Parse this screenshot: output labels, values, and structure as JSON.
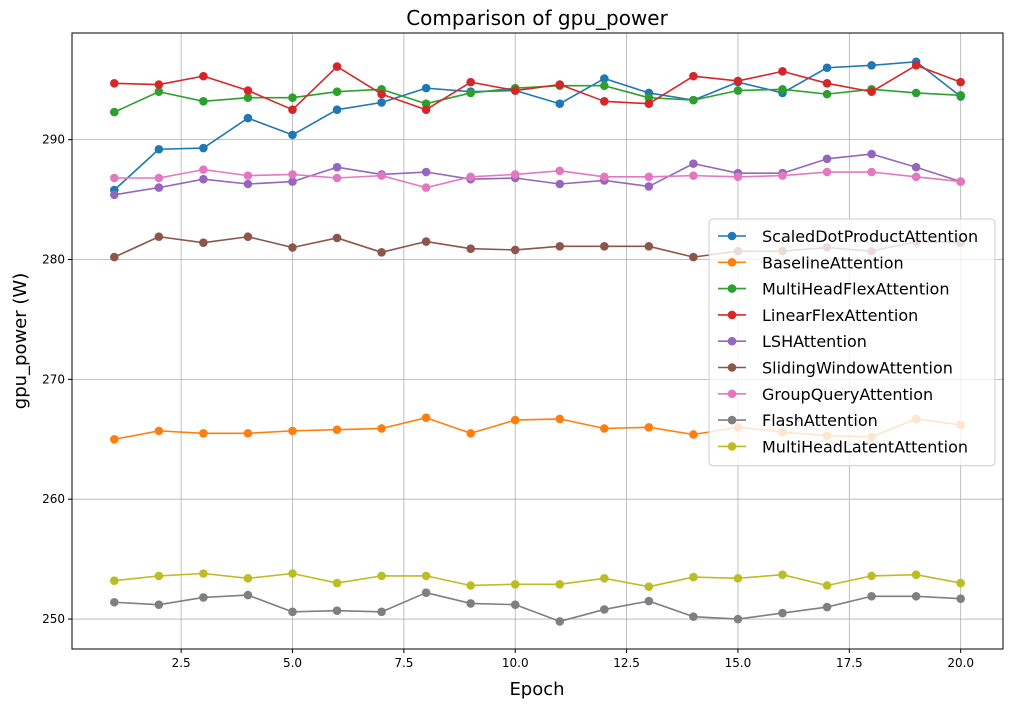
{
  "chart_data": {
    "type": "line",
    "title": "Comparison of gpu_power",
    "xlabel": "Epoch",
    "ylabel": "gpu_power (W)",
    "xlim": [
      0.05,
      20.95
    ],
    "ylim": [
      247.5,
      298.9
    ],
    "xticks": [
      2.5,
      5.0,
      7.5,
      10.0,
      12.5,
      15.0,
      17.5,
      20.0
    ],
    "xtick_labels": [
      "2.5",
      "5.0",
      "7.5",
      "10.0",
      "12.5",
      "15.0",
      "17.5",
      "20.0"
    ],
    "yticks": [
      250,
      260,
      270,
      280,
      290
    ],
    "ytick_labels": [
      "250",
      "260",
      "270",
      "280",
      "290"
    ],
    "grid": true,
    "legend_position": "center-right",
    "x": [
      1,
      2,
      3,
      4,
      5,
      6,
      7,
      8,
      9,
      10,
      11,
      12,
      13,
      14,
      15,
      16,
      17,
      18,
      19,
      20
    ],
    "series": [
      {
        "name": "ScaledDotProductAttention",
        "color": "#1f77b4",
        "values": [
          285.8,
          289.2,
          289.3,
          291.8,
          290.4,
          292.5,
          293.1,
          294.3,
          294.0,
          294.1,
          293.0,
          295.1,
          293.9,
          293.3,
          294.8,
          293.9,
          296.0,
          296.2,
          296.5,
          293.6
        ]
      },
      {
        "name": "BaselineAttention",
        "color": "#ff7f0e",
        "values": [
          265.0,
          265.7,
          265.5,
          265.5,
          265.7,
          265.8,
          265.9,
          266.8,
          265.5,
          266.6,
          266.7,
          265.9,
          266.0,
          265.4,
          266.0,
          265.6,
          265.3,
          265.2,
          266.7,
          266.2
        ]
      },
      {
        "name": "MultiHeadFlexAttention",
        "color": "#2ca02c",
        "values": [
          292.3,
          294.0,
          293.2,
          293.5,
          293.5,
          294.0,
          294.2,
          293.0,
          293.9,
          294.3,
          294.5,
          294.5,
          293.5,
          293.3,
          294.1,
          294.2,
          293.8,
          294.2,
          293.9,
          293.7
        ]
      },
      {
        "name": "LinearFlexAttention",
        "color": "#d62728",
        "values": [
          294.7,
          294.6,
          295.3,
          294.1,
          292.5,
          296.1,
          293.8,
          292.5,
          294.8,
          294.1,
          294.6,
          293.2,
          293.0,
          295.3,
          294.9,
          295.7,
          294.7,
          294.0,
          296.2,
          294.8
        ]
      },
      {
        "name": "LSHAttention",
        "color": "#9467bd",
        "values": [
          285.4,
          286.0,
          286.7,
          286.3,
          286.5,
          287.7,
          287.1,
          287.3,
          286.7,
          286.8,
          286.3,
          286.6,
          286.1,
          288.0,
          287.2,
          287.2,
          288.4,
          288.8,
          287.7,
          286.5
        ]
      },
      {
        "name": "SlidingWindowAttention",
        "color": "#8c564b",
        "values": [
          280.2,
          281.9,
          281.4,
          281.9,
          281.0,
          281.8,
          280.6,
          281.5,
          280.9,
          280.8,
          281.1,
          281.1,
          281.1,
          280.2,
          280.7,
          280.7,
          281.0,
          280.7,
          281.5,
          281.4
        ]
      },
      {
        "name": "GroupQueryAttention",
        "color": "#e377c2",
        "values": [
          286.8,
          286.8,
          287.5,
          287.0,
          287.1,
          286.8,
          287.0,
          286.0,
          286.9,
          287.1,
          287.4,
          286.9,
          286.9,
          287.0,
          286.9,
          287.0,
          287.3,
          287.3,
          286.9,
          286.5
        ]
      },
      {
        "name": "FlashAttention",
        "color": "#7f7f7f",
        "values": [
          251.4,
          251.2,
          251.8,
          252.0,
          250.6,
          250.7,
          250.6,
          252.2,
          251.3,
          251.2,
          249.8,
          250.8,
          251.5,
          250.2,
          250.0,
          250.5,
          251.0,
          251.9,
          251.9,
          251.7
        ]
      },
      {
        "name": "MultiHeadLatentAttention",
        "color": "#bcbd22",
        "values": [
          253.2,
          253.6,
          253.8,
          253.4,
          253.8,
          253.0,
          253.6,
          253.6,
          252.8,
          252.9,
          252.9,
          253.4,
          252.7,
          253.5,
          253.4,
          253.7,
          252.8,
          253.6,
          253.7,
          253.0
        ]
      }
    ]
  }
}
